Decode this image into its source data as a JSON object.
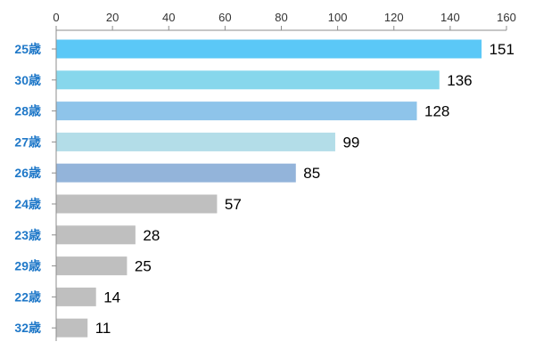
{
  "chart_data": {
    "type": "bar",
    "orientation": "horizontal",
    "title": "",
    "xlabel": "",
    "ylabel": "",
    "xlim": [
      0,
      160
    ],
    "x_ticks": [
      0,
      20,
      40,
      60,
      80,
      100,
      120,
      140,
      160
    ],
    "x_axis_position": "top",
    "grid": false,
    "legend": "none",
    "category_label_color": "#1F78C8",
    "categories": [
      "25歳",
      "30歳",
      "28歳",
      "27歳",
      "26歳",
      "24歳",
      "23歳",
      "29歳",
      "22歳",
      "32歳"
    ],
    "values": [
      151,
      136,
      128,
      99,
      85,
      57,
      28,
      25,
      14,
      11
    ],
    "data_labels": [
      "151",
      "136",
      "128",
      "99",
      "85",
      "57",
      "28",
      "25",
      "14",
      "11"
    ],
    "bar_colors": [
      "#5BC8F7",
      "#87D7EC",
      "#8EC4EA",
      "#B3DDE8",
      "#93B4DA",
      "#BFBFBF",
      "#BFBFBF",
      "#BFBFBF",
      "#BFBFBF",
      "#BFBFBF"
    ]
  }
}
